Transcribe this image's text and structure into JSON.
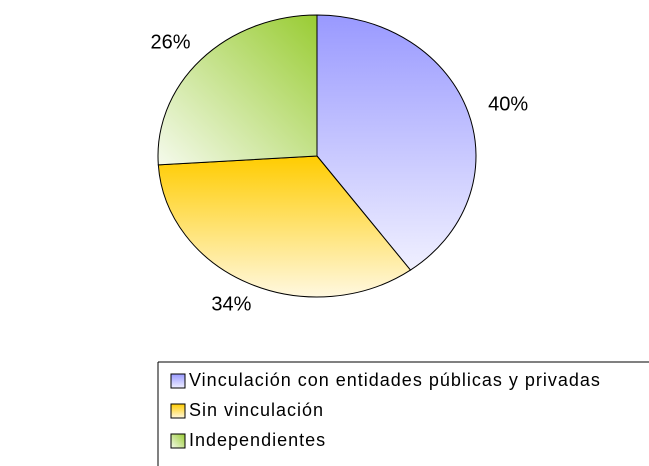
{
  "chart_data": {
    "type": "pie",
    "categories": [
      "Vinculación con entidades públicas y privadas",
      "Sin vinculación",
      "Independientes"
    ],
    "values": [
      40,
      34,
      26
    ],
    "value_labels": [
      "40%",
      "34%",
      "26%"
    ],
    "colors": [
      "#9999ff",
      "#ffcc00",
      "#99cc33"
    ],
    "legend": "bottom"
  }
}
